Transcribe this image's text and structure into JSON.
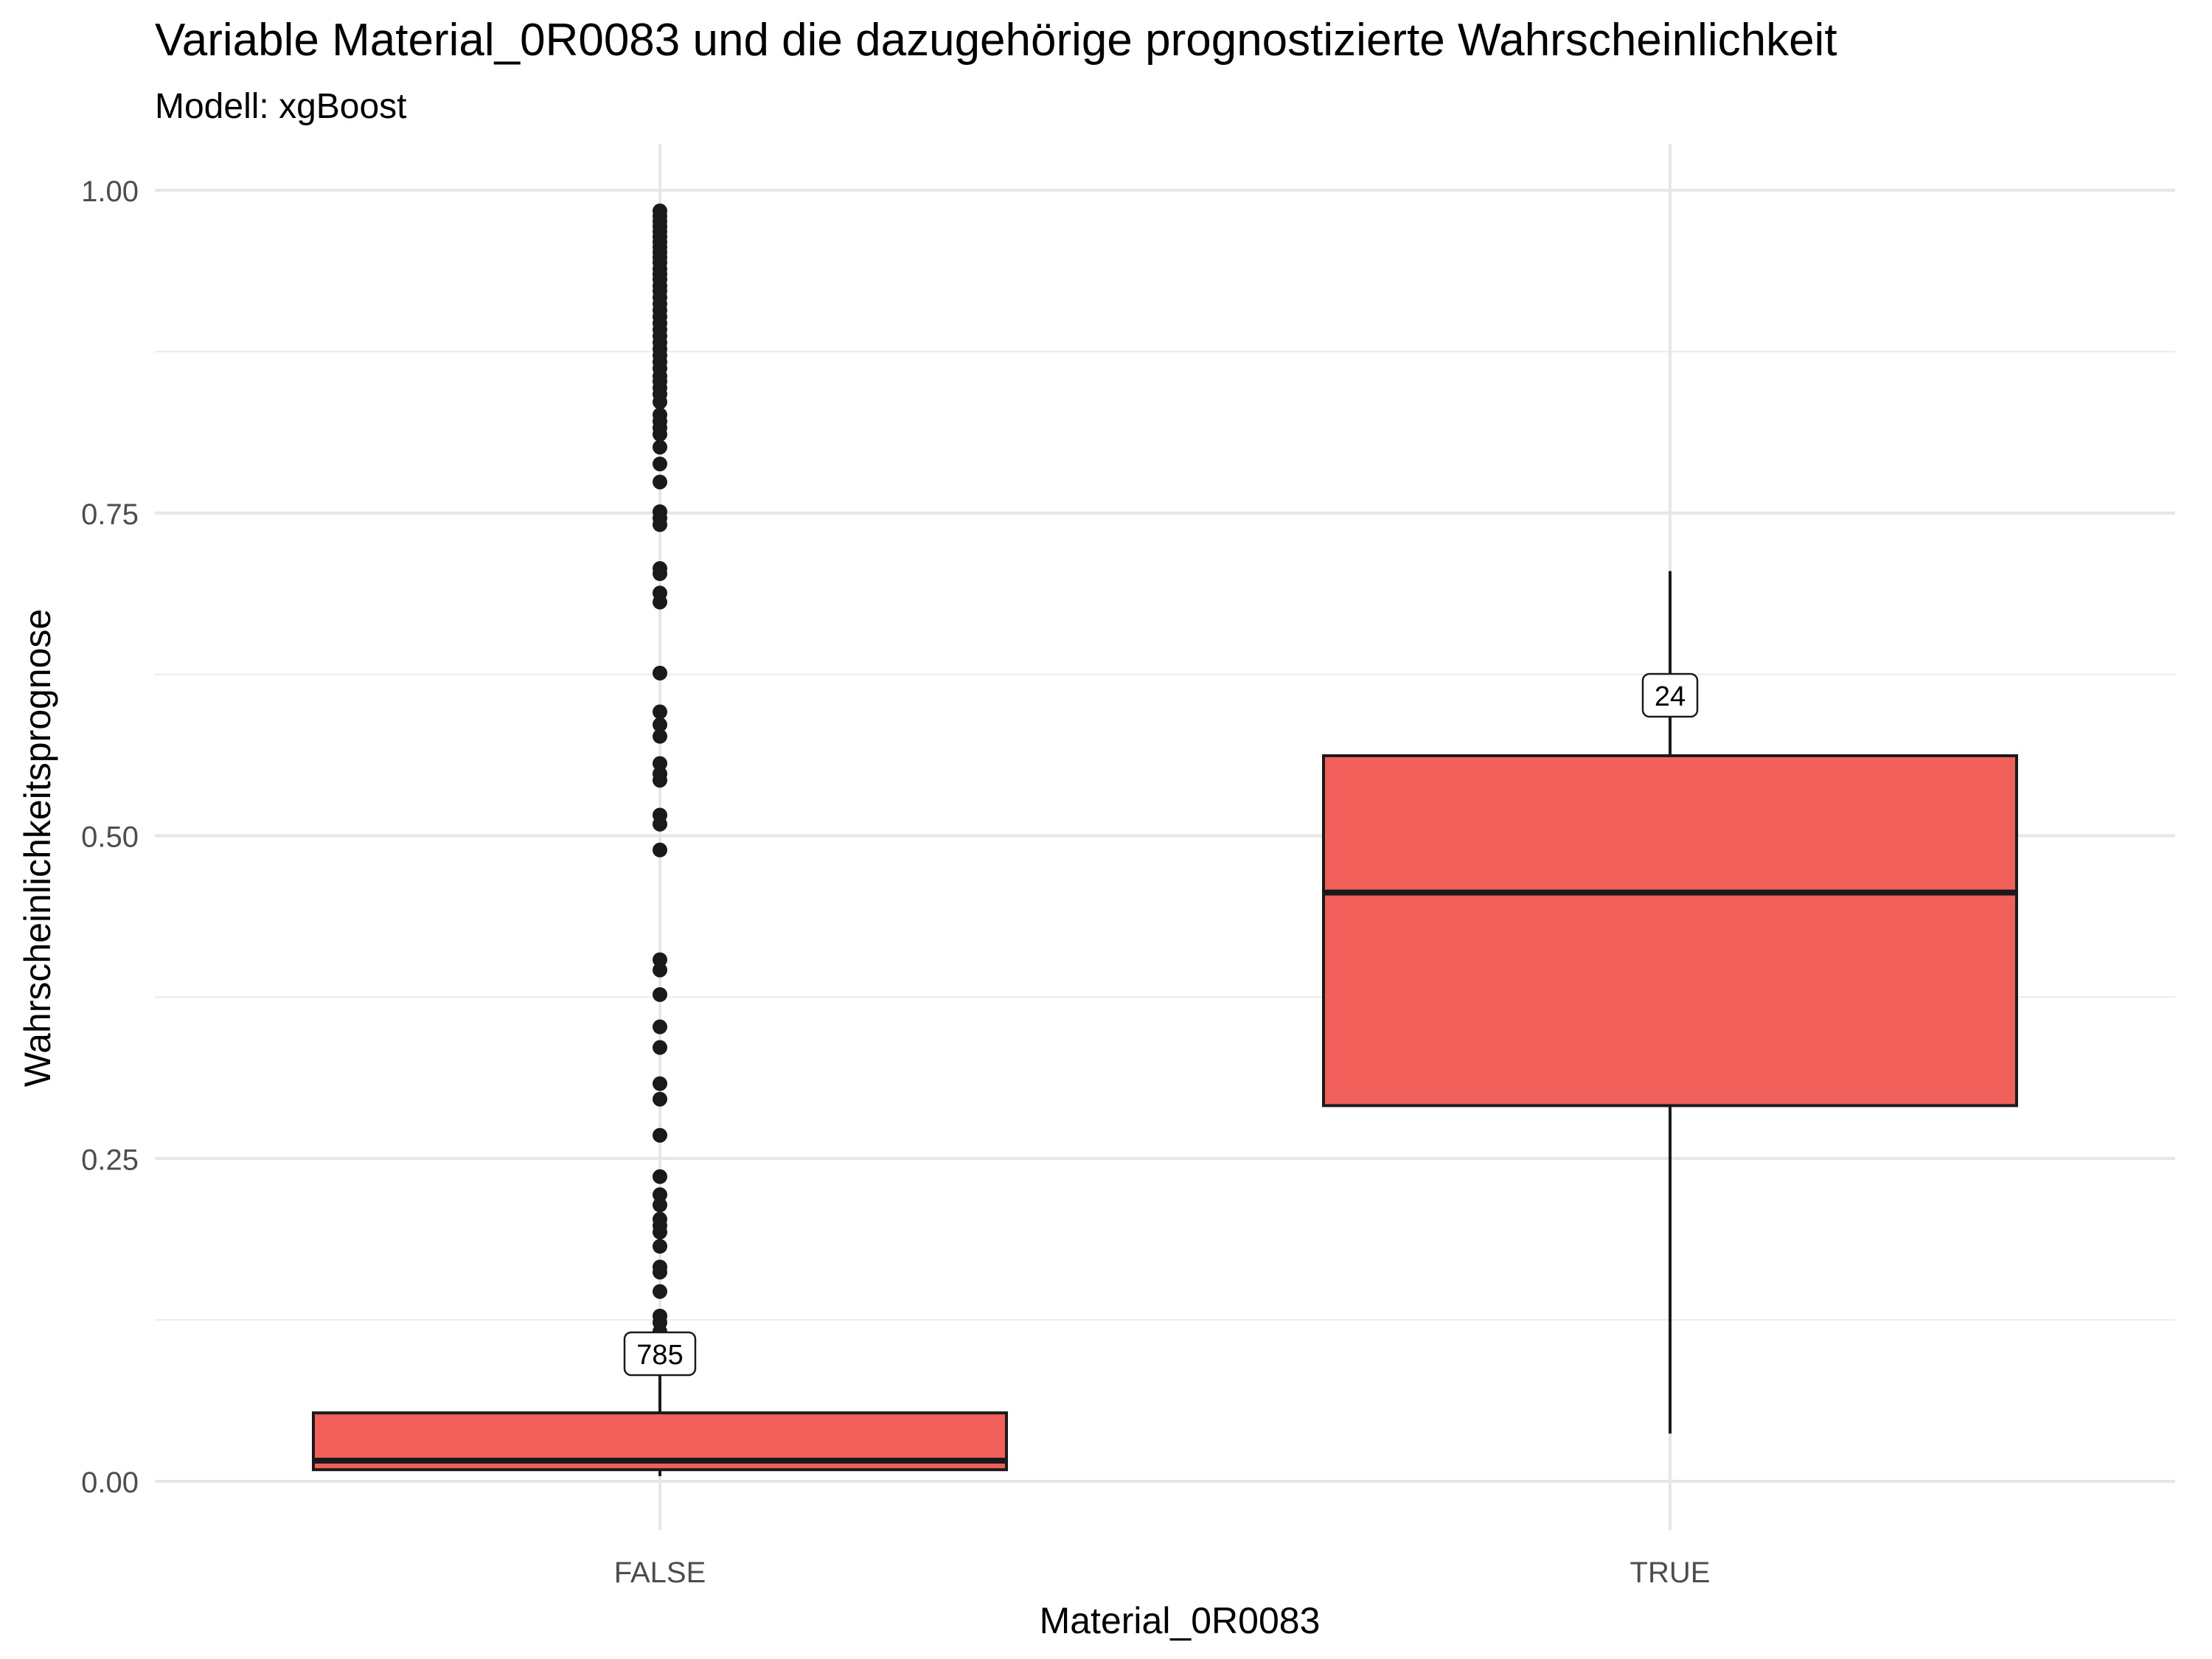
{
  "chart_data": {
    "type": "boxplot",
    "title": "Variable Material_0R0083 und die dazugehörige prognostizierte Wahrscheinlichkeit",
    "subtitle": "Modell: xgBoost",
    "xlabel": "Material_0R0083",
    "ylabel": "Wahrscheinlichkeitsprognose",
    "ylim": [
      0,
      1.0
    ],
    "yticks": [
      "0.00",
      "0.25",
      "0.50",
      "0.75",
      "1.00"
    ],
    "grid": true,
    "fill_color": "#f2605c",
    "categories": [
      "FALSE",
      "TRUE"
    ],
    "boxes": [
      {
        "category": "FALSE",
        "count_label": "785",
        "whisker_low": 0.004,
        "q1": 0.009,
        "median": 0.016,
        "q3": 0.053,
        "whisker_high": 0.112,
        "outliers": [
          0.116,
          0.123,
          0.128,
          0.147,
          0.162,
          0.166,
          0.182,
          0.193,
          0.198,
          0.203,
          0.214,
          0.222,
          0.236,
          0.268,
          0.296,
          0.308,
          0.336,
          0.352,
          0.377,
          0.396,
          0.404,
          0.489,
          0.509,
          0.516,
          0.543,
          0.548,
          0.556,
          0.577,
          0.586,
          0.596,
          0.626,
          0.681,
          0.688,
          0.703,
          0.707,
          0.741,
          0.746,
          0.751,
          0.774,
          0.788,
          0.801,
          0.811,
          0.816,
          0.821,
          0.826,
          0.836,
          0.842,
          0.847,
          0.852,
          0.856,
          0.862,
          0.867,
          0.872,
          0.877,
          0.882,
          0.887,
          0.892,
          0.897,
          0.902,
          0.907,
          0.912,
          0.917,
          0.922,
          0.926,
          0.931,
          0.935,
          0.939,
          0.944,
          0.948,
          0.952,
          0.956,
          0.96,
          0.964,
          0.968,
          0.972,
          0.976,
          0.98,
          0.984
        ]
      },
      {
        "category": "TRUE",
        "count_label": "24",
        "whisker_low": 0.037,
        "q1": 0.291,
        "median": 0.456,
        "q3": 0.562,
        "whisker_high": 0.705,
        "outliers": []
      }
    ]
  }
}
